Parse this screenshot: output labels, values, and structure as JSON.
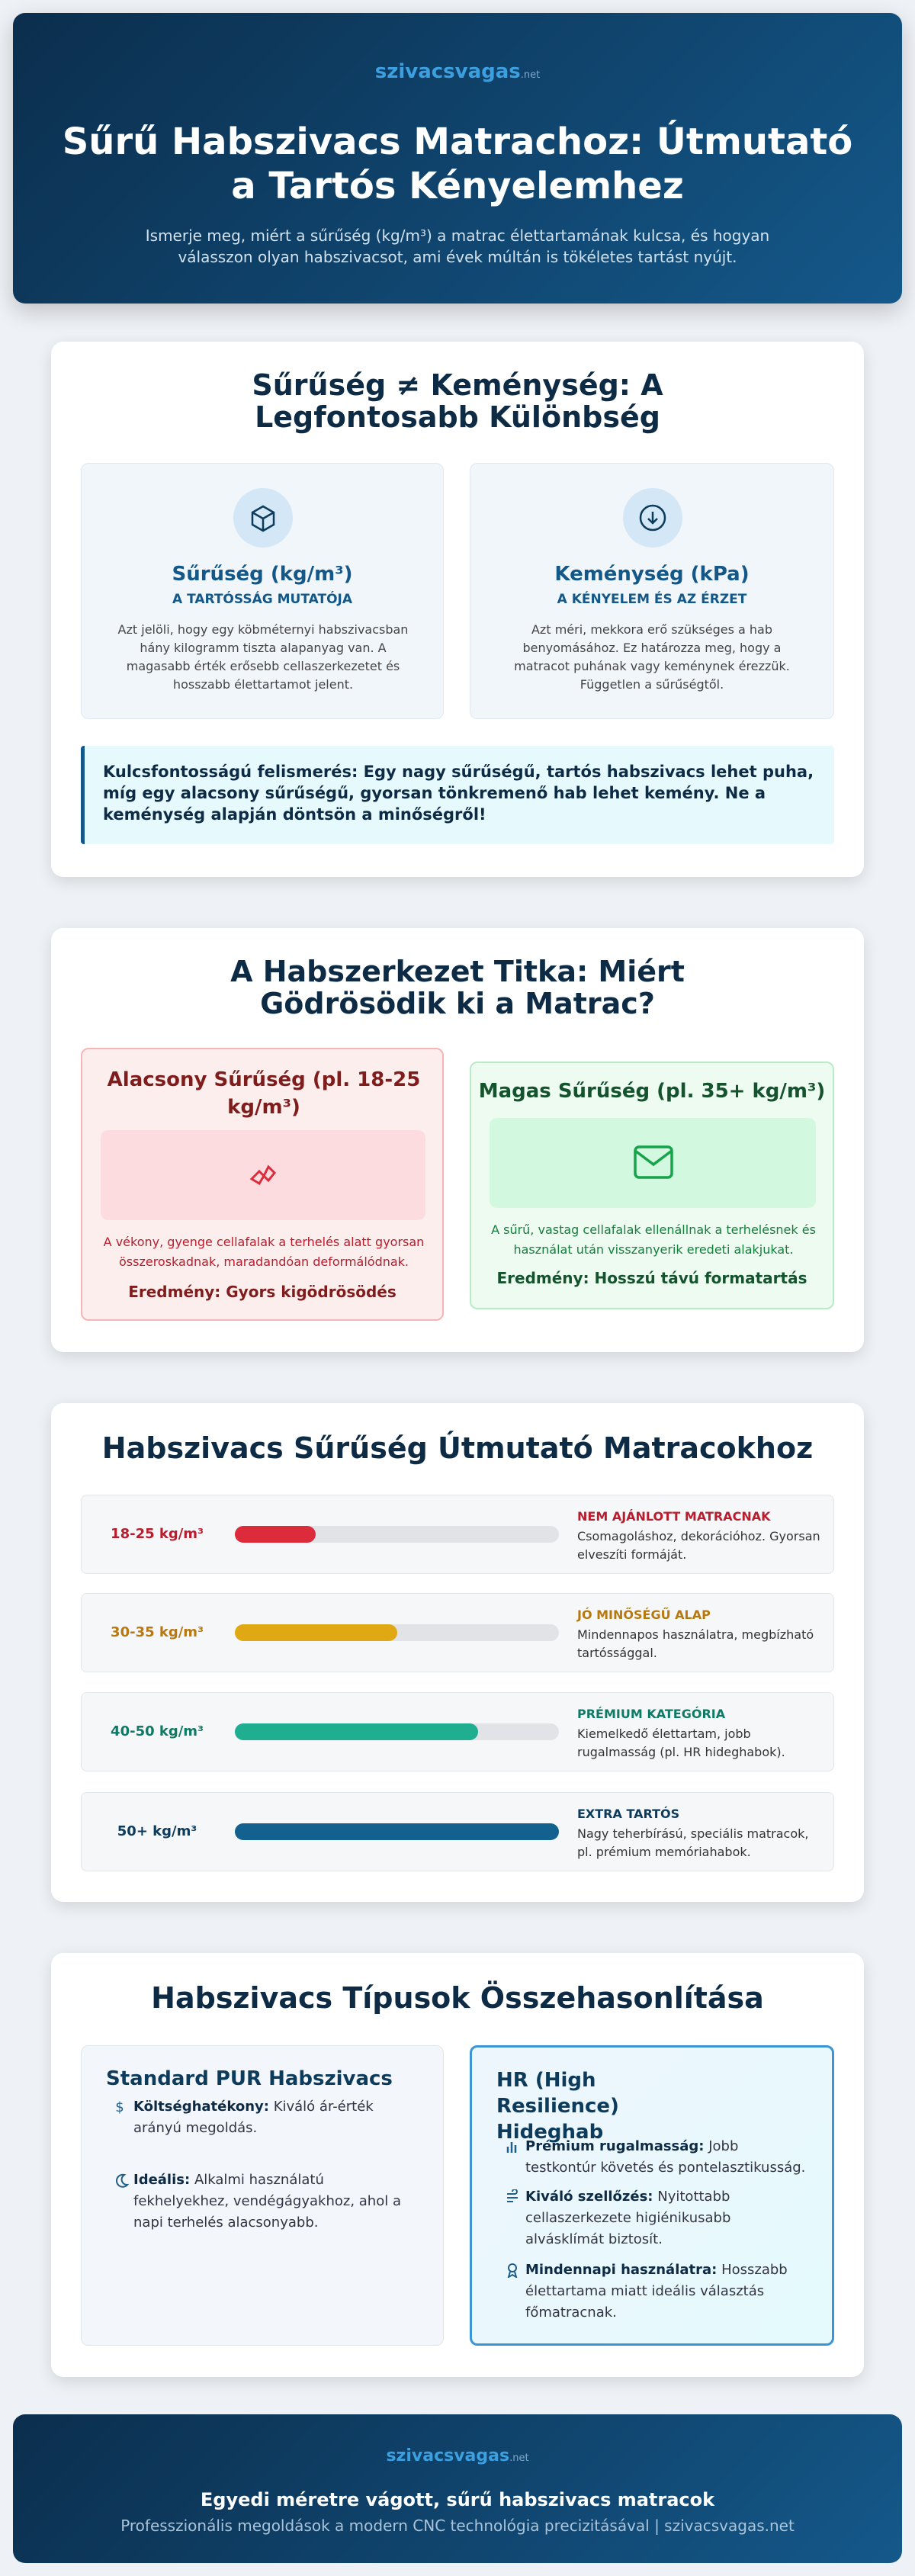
{
  "header": {
    "logo": "szivacsvagas",
    "tld": ".net",
    "title": "Sűrű Habszivacs Matrachoz: Útmutató a Tartós Kényelemhez",
    "subtitle": "Ismerje meg, miért a sűrűség (kg/m³) a matrac élettartamának kulcsa, és hogyan válasszon olyan habszivacsot, ami évek múltán is tökéletes tartást nyújt."
  },
  "section1": {
    "title": "Sűrűség ≠ Keménység: A Legfontosabb Különbség",
    "cards": [
      {
        "title": "Sűrűség (kg/m³)",
        "subtitle": "A TARTÓSSÁG MUTATÓJA",
        "text": "Azt jelöli, hogy egy köbméternyi habszivacsban hány kilogramm tiszta alapanyag van. A magasabb érték erősebb cellaszerkezetet és hosszabb élettartamot jelent."
      },
      {
        "title": "Keménység (kPa)",
        "subtitle": "A KÉNYELEM ÉS AZ ÉRZET",
        "text": "Azt méri, mekkora erő szükséges a hab benyomásához. Ez határozza meg, hogy a matracot puhának vagy keménynek érezzük. Független a sűrűségtől."
      }
    ],
    "callout": "Kulcsfontosságú felismerés: Egy nagy sűrűségű, tartós habszivacs lehet puha, míg egy alacsony sűrűségű, gyorsan tönkremenő hab lehet kemény. Ne a keménység alapján döntsön a minőségről!"
  },
  "section2": {
    "title": "A Habszerkezet Titka: Miért Gödrösödik ki a Matrac?",
    "low": {
      "title": "Alacsony Sűrűség (pl. 18-25 kg/m³)",
      "text": "A vékony, gyenge cellafalak a terhelés alatt gyorsan összeroskadnak, maradandóan deformálódnak.",
      "result": "Eredmény: Gyors kigödrösödés"
    },
    "high": {
      "title": "Magas Sűrűség (pl. 35+ kg/m³)",
      "text": "A sűrű, vastag cellafalak ellenállnak a terhelésnek és használat után visszanyerik eredeti alakjukat.",
      "result": "Eredmény: Hosszú távú formatartás"
    }
  },
  "section3": {
    "title": "Habszivacs Sűrűség Útmutató Matracokhoz",
    "rows": [
      {
        "label": "18-25 kg/m³",
        "level": 25,
        "color": "#dc2c3c",
        "title": "NEM AJÁNLOTT MATRACNAK",
        "text": "Csomagoláshoz, dekorációhoz. Gyorsan elveszíti formáját."
      },
      {
        "label": "30-35 kg/m³",
        "level": 50,
        "color": "#e0a812",
        "title": "JÓ MINŐSÉGŰ ALAP",
        "text": "Mindennapos használatra, megbízható tartóssággal."
      },
      {
        "label": "40-50 kg/m³",
        "level": 75,
        "color": "#1fae8f",
        "title": "PRÉMIUM KATEGÓRIA",
        "text": "Kiemelkedő élettartam, jobb rugalmasság (pl. HR hideghabok)."
      },
      {
        "label": "50+ kg/m³",
        "level": 100,
        "color": "#13618f",
        "title": "EXTRA TARTÓS",
        "text": "Nagy teherbírású, speciális matracok, pl. prémium memóriahabok."
      }
    ]
  },
  "section4": {
    "title": "Habszivacs Típusok Összehasonlítása",
    "cards": [
      {
        "title": "Standard PUR Habszivacs",
        "items": [
          {
            "term": "Költséghatékony:",
            "text": "Kiváló ár-érték arányú megoldás."
          },
          {
            "term": "Ideális:",
            "text": "Alkalmi használatú fekhelyekhez, vendégágyakhoz, ahol a napi terhelés alacsonyabb."
          }
        ]
      },
      {
        "title": "HR (High Resilience) Hideghab",
        "items": [
          {
            "term": "Prémium rugalmasság:",
            "text": "Jobb testkontúr követés és pontelasztikusság."
          },
          {
            "term": "Kiváló szellőzés:",
            "text": "Nyitottabb cellaszerkezete higiénikusabb alvásklímát biztosít."
          },
          {
            "term": "Mindennapi használatra:",
            "text": "Hosszabb élettartama miatt ideális választás főmatracnak."
          }
        ]
      }
    ]
  },
  "footer": {
    "logo": "szivacsvagas",
    "tld": ".net",
    "tagline": "Egyedi méretre vágott, sűrű habszivacs matracok",
    "subtitle": "Professzionális megoldások a modern CNC technológia precizitásával | szivacsvagas.net"
  }
}
